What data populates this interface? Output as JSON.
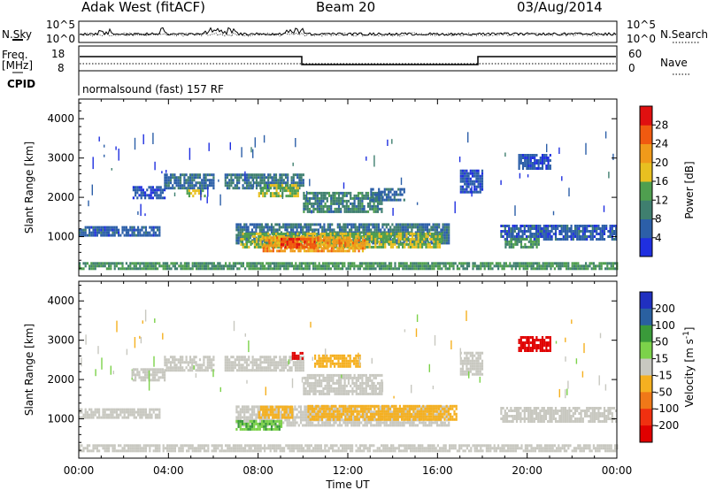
{
  "header": {
    "station": "Adak West (fitACF)",
    "beam": "Beam 20",
    "date": "03/Aug/2014"
  },
  "strips": {
    "nsky_label": "N.Sky",
    "nsearch_label": "N.Search",
    "log_top": "10^5",
    "log_bottom": "10^0",
    "freq_label_line1": "Freq.",
    "freq_label_line2": "[MHz]",
    "freq_ticks": [
      "18",
      "8"
    ],
    "nave_label": "Nave",
    "nave_ticks": [
      "60",
      "0"
    ],
    "cpid_label": "CPID",
    "cpid_text": "normalsound (fast) 157 RF"
  },
  "colors": {
    "power": [
      "#1f2fe0",
      "#2c5fa8",
      "#3f7f6f",
      "#4f9f4f",
      "#e8c020",
      "#f09a1a",
      "#f05a10",
      "#e01010"
    ],
    "velocity": [
      "#2030c0",
      "#2a60a0",
      "#3a9a3a",
      "#7cd24a",
      "#c8c8c0",
      "#f5b020",
      "#f07818",
      "#f03010",
      "#e00000"
    ]
  },
  "chart_data": [
    {
      "type": "heatmap",
      "title": "Power",
      "xlabel": "Time UT",
      "ylabel": "Slant Range [km]",
      "x_ticks": [
        "00:00",
        "04:00",
        "08:00",
        "12:00",
        "16:00",
        "20:00",
        "00:00"
      ],
      "x_range_hours": [
        0,
        24
      ],
      "y_ticks": [
        1000,
        2000,
        3000,
        4000
      ],
      "ylim": [
        0,
        4500
      ],
      "colorbar_label": "Power [dB]",
      "colorbar_ticks": [
        4,
        8,
        12,
        16,
        20,
        24,
        28
      ],
      "colorbar_range": [
        0,
        30
      ],
      "echo_bands": [
        {
          "t0": 0.0,
          "t1": 3.6,
          "r0": 1000,
          "r1": 1250,
          "v": 6
        },
        {
          "t0": 2.4,
          "t1": 3.8,
          "r0": 1950,
          "r1": 2250,
          "v": 5
        },
        {
          "t0": 3.8,
          "t1": 6.0,
          "r0": 2200,
          "r1": 2600,
          "v": 7
        },
        {
          "t0": 4.8,
          "t1": 5.6,
          "r0": 2000,
          "r1": 2200,
          "v": 16
        },
        {
          "t0": 6.5,
          "t1": 10.0,
          "r0": 2200,
          "r1": 2600,
          "v": 9
        },
        {
          "t0": 8.0,
          "t1": 9.8,
          "r0": 2000,
          "r1": 2300,
          "v": 15
        },
        {
          "t0": 7.0,
          "t1": 16.5,
          "r0": 800,
          "r1": 1300,
          "v": 8
        },
        {
          "t0": 7.2,
          "t1": 16.2,
          "r0": 700,
          "r1": 1100,
          "v": 16
        },
        {
          "t0": 8.2,
          "t1": 12.8,
          "r0": 600,
          "r1": 1000,
          "v": 22
        },
        {
          "t0": 9.0,
          "t1": 10.5,
          "r0": 700,
          "r1": 950,
          "v": 27
        },
        {
          "t0": 10.0,
          "t1": 13.5,
          "r0": 1600,
          "r1": 2100,
          "v": 10
        },
        {
          "t0": 13.0,
          "t1": 14.5,
          "r0": 1900,
          "r1": 2200,
          "v": 7
        },
        {
          "t0": 17.0,
          "t1": 18.0,
          "r0": 2100,
          "r1": 2700,
          "v": 5
        },
        {
          "t0": 19.6,
          "t1": 21.0,
          "r0": 2700,
          "r1": 3100,
          "v": 5
        },
        {
          "t0": 18.8,
          "t1": 24.0,
          "r0": 900,
          "r1": 1250,
          "v": 6
        },
        {
          "t0": 19.0,
          "t1": 20.5,
          "r0": 700,
          "r1": 950,
          "v": 12
        },
        {
          "t0": 0.0,
          "t1": 24.0,
          "r0": 150,
          "r1": 320,
          "v": 12
        }
      ]
    },
    {
      "type": "heatmap",
      "title": "Velocity",
      "xlabel": "Time UT",
      "ylabel": "Slant Range [km]",
      "x_ticks": [
        "00:00",
        "04:00",
        "08:00",
        "12:00",
        "16:00",
        "20:00",
        "00:00"
      ],
      "x_range_hours": [
        0,
        24
      ],
      "y_ticks": [
        1000,
        2000,
        3000,
        4000
      ],
      "ylim": [
        0,
        4500
      ],
      "colorbar_label": "Velocity [m s^-1]",
      "colorbar_ticks": [
        200,
        100,
        50,
        15,
        -15,
        -50,
        -100,
        -200
      ],
      "echo_bands": [
        {
          "t0": 0.0,
          "t1": 3.6,
          "r0": 1000,
          "r1": 1250,
          "v": 0
        },
        {
          "t0": 2.4,
          "t1": 3.8,
          "r0": 1950,
          "r1": 2250,
          "v": 0
        },
        {
          "t0": 3.8,
          "t1": 6.0,
          "r0": 2200,
          "r1": 2600,
          "v": 0
        },
        {
          "t0": 6.5,
          "t1": 10.0,
          "r0": 2200,
          "r1": 2600,
          "v": 0
        },
        {
          "t0": 9.5,
          "t1": 10.0,
          "r0": 2500,
          "r1": 2700,
          "v": -250
        },
        {
          "t0": 7.0,
          "t1": 16.5,
          "r0": 800,
          "r1": 1300,
          "v": 0
        },
        {
          "t0": 10.2,
          "t1": 16.8,
          "r0": 950,
          "r1": 1350,
          "v": -40
        },
        {
          "t0": 8.0,
          "t1": 9.5,
          "r0": 1000,
          "r1": 1300,
          "v": -40
        },
        {
          "t0": 7.0,
          "t1": 9.0,
          "r0": 700,
          "r1": 950,
          "v": 30
        },
        {
          "t0": 10.0,
          "t1": 13.5,
          "r0": 1600,
          "r1": 2100,
          "v": 0
        },
        {
          "t0": 10.5,
          "t1": 12.5,
          "r0": 2300,
          "r1": 2600,
          "v": -40
        },
        {
          "t0": 17.0,
          "t1": 18.0,
          "r0": 2100,
          "r1": 2700,
          "v": 0
        },
        {
          "t0": 19.6,
          "t1": 21.0,
          "r0": 2700,
          "r1": 3100,
          "v": -250
        },
        {
          "t0": 18.8,
          "t1": 24.0,
          "r0": 900,
          "r1": 1250,
          "v": 0
        },
        {
          "t0": 0.0,
          "t1": 24.0,
          "r0": 150,
          "r1": 320,
          "v": 0
        }
      ]
    }
  ]
}
